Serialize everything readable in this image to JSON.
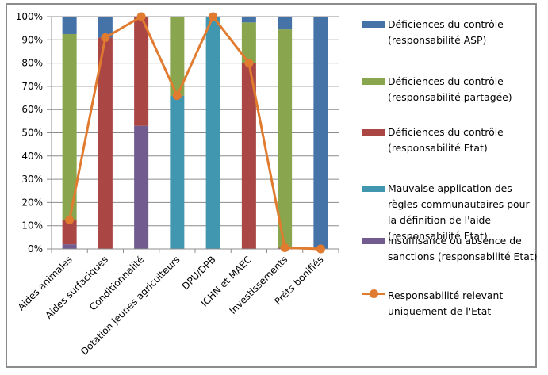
{
  "chart_data": {
    "type": "bar",
    "stacked": true,
    "title": "",
    "xlabel": "",
    "ylabel": "",
    "ylim": [
      0,
      100
    ],
    "yticks": [
      "0%",
      "10%",
      "20%",
      "30%",
      "40%",
      "50%",
      "60%",
      "70%",
      "80%",
      "90%",
      "100%"
    ],
    "grid": true,
    "legend_position": "right",
    "categories": [
      "Aides animales",
      "Aides surfaciques",
      "Conditionnalité",
      "Dotation jeunes agriculteurs",
      "DPU/DPB",
      "ICHN et MAEC",
      "Investissements",
      "Prêts bonifiés"
    ],
    "series": [
      {
        "name": "Insuffisance ou absence de sanctions (responsabilité Etat)",
        "color": "#725b8f",
        "values": [
          2,
          0,
          53,
          0,
          0,
          0,
          0,
          0
        ]
      },
      {
        "name": "Mauvaise application des règles communautaires pour la définition de l'aide (responsabilité Etat)",
        "color": "#4197b0",
        "values": [
          0,
          0,
          0,
          66,
          100,
          0,
          0,
          0
        ]
      },
      {
        "name": "Déficiences du contrôle (responsabilité Etat)",
        "color": "#aa4643",
        "values": [
          10.5,
          91,
          47,
          0,
          0,
          80,
          0.5,
          0
        ]
      },
      {
        "name": "Déficiences du contrôle (responsabilité partagée)",
        "color": "#89a54e",
        "values": [
          80,
          0,
          0,
          34,
          0,
          17.5,
          94,
          0
        ]
      },
      {
        "name": "Déficiences du contrôle (responsabilité ASP)",
        "color": "#4572a7",
        "values": [
          7.5,
          9,
          0,
          0,
          0,
          2.5,
          5.5,
          100
        ]
      }
    ],
    "line_series": {
      "name": "Responsabilité relevant uniquement de l'Etat",
      "color": "#e07b2f",
      "values": [
        12.5,
        91,
        100,
        66,
        100,
        80,
        0.5,
        0
      ]
    },
    "legend_order": [
      {
        "name": "Déficiences du contrôle (responsabilité ASP)",
        "color": "#4572a7",
        "kind": "bar"
      },
      {
        "name": "Déficiences du contrôle (responsabilité partagée)",
        "color": "#89a54e",
        "kind": "bar"
      },
      {
        "name": "Déficiences du contrôle (responsabilité Etat)",
        "color": "#aa4643",
        "kind": "bar"
      },
      {
        "name": "Mauvaise application des règles communautaires pour la définition de l'aide (responsabilité Etat)",
        "color": "#4197b0",
        "kind": "bar"
      },
      {
        "name": "Insuffisance ou absence de sanctions (responsabilité Etat)",
        "color": "#725b8f",
        "kind": "bar"
      },
      {
        "name": "Responsabilité relevant uniquement de l'Etat",
        "color": "#e07b2f",
        "kind": "line"
      }
    ]
  }
}
